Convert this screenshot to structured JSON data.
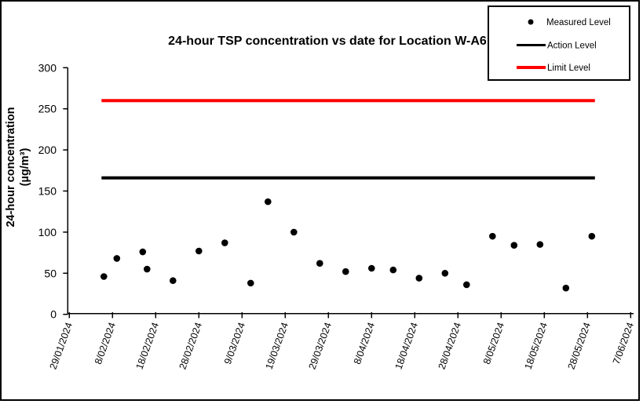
{
  "figure": {
    "background_color": "#ffffff",
    "border_color": "#000000"
  },
  "chart_data": {
    "type": "scatter",
    "title": "24-hour TSP concentration vs date for Location W-A6",
    "xlabel": "",
    "ylabel_line1": "24-hour concentration",
    "ylabel_line2": "(µg/m³)",
    "ylim": [
      0,
      300
    ],
    "y_ticks": [
      0,
      50,
      100,
      150,
      200,
      250,
      300
    ],
    "x_ticks": [
      "29/01/2024",
      "8/02/2024",
      "18/02/2024",
      "28/02/2024",
      "9/03/2024",
      "19/03/2024",
      "29/03/2024",
      "8/04/2024",
      "18/04/2024",
      "28/04/2024",
      "8/05/2024",
      "18/05/2024",
      "28/05/2024",
      "7/06/2024"
    ],
    "grid": false,
    "series": [
      {
        "name": "Measured Level",
        "type": "scatter",
        "marker": "dot",
        "color": "#000000",
        "points": [
          {
            "date": "6/02/2024",
            "value": 46
          },
          {
            "date": "9/02/2024",
            "value": 68
          },
          {
            "date": "15/02/2024",
            "value": 76
          },
          {
            "date": "16/02/2024",
            "value": 55
          },
          {
            "date": "22/02/2024",
            "value": 41
          },
          {
            "date": "28/02/2024",
            "value": 77
          },
          {
            "date": "5/03/2024",
            "value": 87
          },
          {
            "date": "11/03/2024",
            "value": 38
          },
          {
            "date": "15/03/2024",
            "value": 137
          },
          {
            "date": "21/03/2024",
            "value": 100
          },
          {
            "date": "27/03/2024",
            "value": 62
          },
          {
            "date": "2/04/2024",
            "value": 52
          },
          {
            "date": "8/04/2024",
            "value": 56
          },
          {
            "date": "13/04/2024",
            "value": 54
          },
          {
            "date": "19/04/2024",
            "value": 44
          },
          {
            "date": "25/04/2024",
            "value": 50
          },
          {
            "date": "30/04/2024",
            "value": 36
          },
          {
            "date": "6/05/2024",
            "value": 95
          },
          {
            "date": "11/05/2024",
            "value": 84
          },
          {
            "date": "17/05/2024",
            "value": 85
          },
          {
            "date": "23/05/2024",
            "value": 32
          },
          {
            "date": "29/05/2024",
            "value": 95
          }
        ]
      },
      {
        "name": "Action Level",
        "type": "line",
        "color": "#000000",
        "value": 166,
        "start_date": "6/02/2024",
        "end_date": "29/05/2024"
      },
      {
        "name": "Limit Level",
        "type": "line",
        "color": "#ff0000",
        "value": 260,
        "start_date": "6/02/2024",
        "end_date": "29/05/2024"
      }
    ],
    "legend": {
      "position": "top-right",
      "entries": [
        {
          "label": "Measured Level",
          "marker": "dot",
          "color": "#000000"
        },
        {
          "label": "Action Level",
          "marker": "line",
          "color": "#000000"
        },
        {
          "label": "Limit Level",
          "marker": "line",
          "color": "#ff0000"
        }
      ]
    }
  }
}
